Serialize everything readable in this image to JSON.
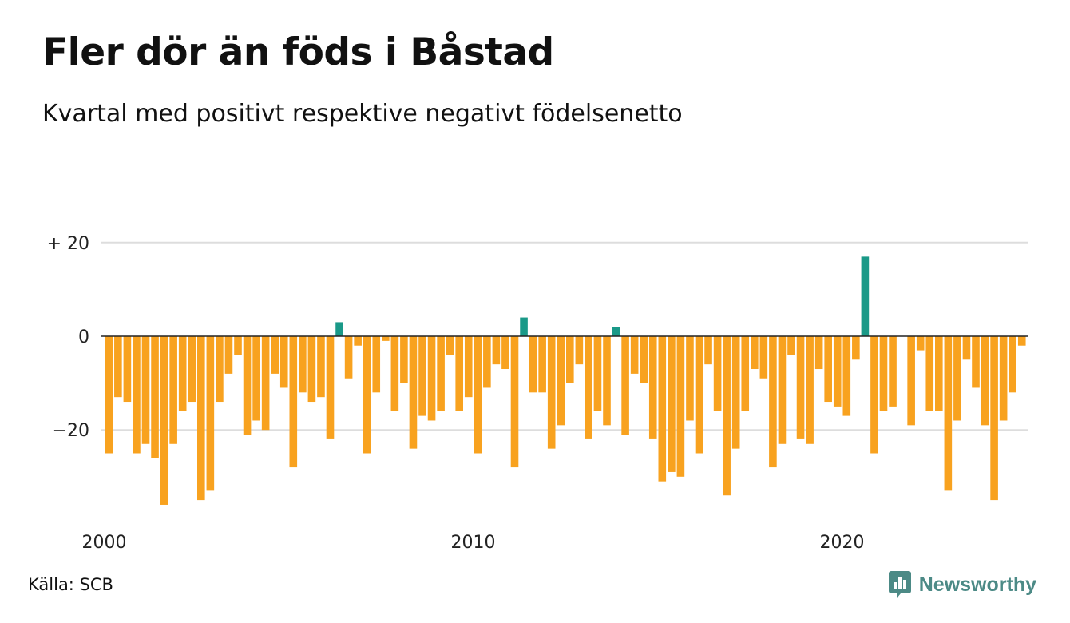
{
  "title": "Fler dör än föds i Båstad",
  "subtitle": "Kvartal med positivt respektive negativt födelsenetto",
  "source": "Källa: SCB",
  "brand": "Newsworthy",
  "colors": {
    "positive": "#1a9988",
    "negative": "#f8a21f",
    "gridline": "#dddddd",
    "baseline": "#222222",
    "brand": "#4c8a86"
  },
  "chart_data": {
    "type": "bar",
    "x_unit": "quarter",
    "start": "2000 Q1",
    "values": [
      -25,
      -13,
      -14,
      -25,
      -23,
      -26,
      -36,
      -23,
      -16,
      -14,
      -35,
      -33,
      -14,
      -8,
      -4,
      -21,
      -18,
      -20,
      -8,
      -11,
      -28,
      -12,
      -14,
      -13,
      -22,
      3,
      -9,
      -2,
      -25,
      -12,
      -1,
      -16,
      -10,
      -24,
      -17,
      -18,
      -16,
      -4,
      -16,
      -13,
      -25,
      -11,
      -6,
      -7,
      -28,
      4,
      -12,
      -12,
      -24,
      -19,
      -10,
      -6,
      -22,
      -16,
      -19,
      2,
      -21,
      -8,
      -10,
      -22,
      -31,
      -29,
      -30,
      -18,
      -25,
      -6,
      -16,
      -34,
      -24,
      -16,
      -7,
      -9,
      -28,
      -23,
      -4,
      -22,
      -23,
      -7,
      -14,
      -15,
      -17,
      -5,
      17,
      -25,
      -16,
      -15,
      0,
      -19,
      -3,
      -16,
      -16,
      -33,
      -18,
      -5,
      -11,
      -19,
      -35,
      -18,
      -12,
      -2
    ],
    "ylim": [
      -38,
      20
    ],
    "yticks": [
      {
        "value": 20,
        "label": "+ 20"
      },
      {
        "value": 0,
        "label": "0"
      },
      {
        "value": -20,
        "label": "−20"
      }
    ],
    "xticks": [
      {
        "label": "2000",
        "index": 0
      },
      {
        "label": "2010",
        "index": 40
      },
      {
        "label": "2020",
        "index": 80
      }
    ],
    "grid": true
  }
}
